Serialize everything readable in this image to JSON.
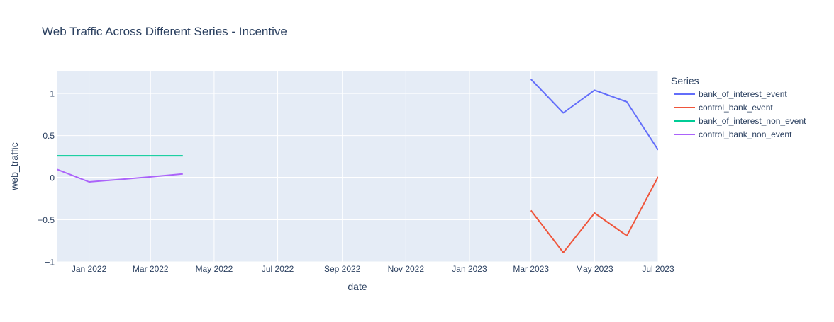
{
  "chart_data": {
    "type": "line",
    "title": "Web Traffic Across Different Series - Incentive",
    "xlabel": "date",
    "ylabel": "web_traffic",
    "xlim": [
      "2021-12-01",
      "2023-07-01"
    ],
    "ylim": [
      -1,
      1.27
    ],
    "x_ticks": [
      {
        "date": "2022-01-01",
        "label": "Jan 2022"
      },
      {
        "date": "2022-03-01",
        "label": "Mar 2022"
      },
      {
        "date": "2022-05-01",
        "label": "May 2022"
      },
      {
        "date": "2022-07-01",
        "label": "Jul 2022"
      },
      {
        "date": "2022-09-01",
        "label": "Sep 2022"
      },
      {
        "date": "2022-11-01",
        "label": "Nov 2022"
      },
      {
        "date": "2023-01-01",
        "label": "Jan 2023"
      },
      {
        "date": "2023-03-01",
        "label": "Mar 2023"
      },
      {
        "date": "2023-05-01",
        "label": "May 2023"
      },
      {
        "date": "2023-07-01",
        "label": "Jul 2023"
      }
    ],
    "y_ticks": [
      {
        "value": 1,
        "label": "1"
      },
      {
        "value": 0.5,
        "label": "0.5"
      },
      {
        "value": 0,
        "label": "0"
      },
      {
        "value": -0.5,
        "label": "−0.5"
      },
      {
        "value": -1,
        "label": "−1"
      }
    ],
    "grid": true,
    "legend": {
      "title": "Series",
      "position": "right"
    },
    "series": [
      {
        "name": "bank_of_interest_event",
        "color": "#636efa",
        "x": [
          "2023-03-01",
          "2023-04-01",
          "2023-05-01",
          "2023-06-01",
          "2023-07-01"
        ],
        "y": [
          1.17,
          0.77,
          1.04,
          0.9,
          0.33
        ]
      },
      {
        "name": "control_bank_event",
        "color": "#ef553b",
        "x": [
          "2023-03-01",
          "2023-04-01",
          "2023-05-01",
          "2023-06-01",
          "2023-07-01"
        ],
        "y": [
          -0.39,
          -0.89,
          -0.42,
          -0.69,
          0.01
        ]
      },
      {
        "name": "bank_of_interest_non_event",
        "color": "#00cc96",
        "x": [
          "2021-12-01",
          "2022-01-01",
          "2022-02-01",
          "2022-03-01",
          "2022-04-01"
        ],
        "y": [
          0.26,
          0.26,
          0.26,
          0.26,
          0.26
        ]
      },
      {
        "name": "control_bank_non_event",
        "color": "#ab63fa",
        "x": [
          "2021-12-01",
          "2022-01-01",
          "2022-02-01",
          "2022-03-01",
          "2022-04-01"
        ],
        "y": [
          0.1,
          -0.05,
          -0.02,
          0.01,
          0.045
        ]
      }
    ]
  }
}
